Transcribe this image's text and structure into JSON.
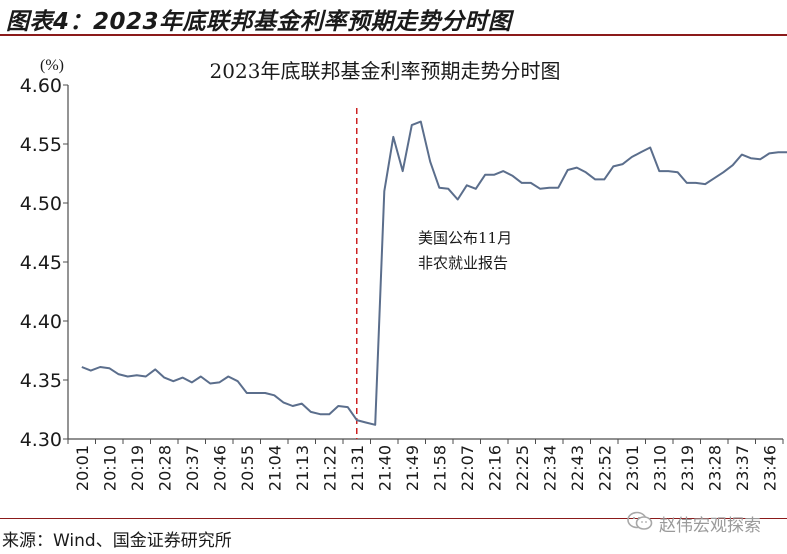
{
  "figure_title": "图表4：2023年底联邦基金利率预期走势分时图",
  "source_text": "来源：Wind、国金证券研究所",
  "watermark_text": "赵伟宏观探索",
  "chart_data": {
    "type": "line",
    "title": "2023年底联邦基金利率预期走势分时图",
    "ylabel": "(%)",
    "ylim": [
      4.3,
      4.6
    ],
    "y_ticks": [
      "4.60",
      "4.55",
      "4.50",
      "4.45",
      "4.40",
      "4.35",
      "4.30"
    ],
    "x_tick_labels": [
      "20:01",
      "20:10",
      "20:19",
      "20:28",
      "20:37",
      "20:46",
      "20:55",
      "21:04",
      "21:13",
      "21:22",
      "21:31",
      "21:40",
      "21:49",
      "21:58",
      "22:07",
      "22:16",
      "22:25",
      "22:34",
      "22:43",
      "22:52",
      "23:01",
      "23:10",
      "23:19",
      "23:28",
      "23:37",
      "23:46"
    ],
    "grid": false,
    "line_color": "#5b6e8c",
    "event_line_color": "#cc2222",
    "event_x_index": 10,
    "annotation_lines": [
      "美国公布11月",
      "非农就业报告"
    ],
    "series": [
      {
        "x": [
          0,
          0.33,
          0.67,
          1,
          1.33,
          1.67,
          2,
          2.33,
          2.67,
          3,
          3.33,
          3.67,
          4,
          4.33,
          4.67,
          5,
          5.33,
          5.67,
          6,
          6.33,
          6.67,
          7,
          7.33,
          7.67,
          8,
          8.33,
          8.67,
          9,
          9.33,
          9.67,
          10,
          10.33,
          10.67,
          11,
          11.33,
          11.67,
          12,
          12.33,
          12.67,
          13,
          13.33,
          13.67,
          14,
          14.33,
          14.67,
          15,
          15.33,
          15.67,
          16,
          16.33,
          16.67,
          17,
          17.33,
          17.67,
          18,
          18.33,
          18.67,
          19,
          19.33,
          19.67,
          20,
          20.33,
          20.67,
          21,
          21.33,
          21.67,
          22,
          22.33,
          22.67,
          23,
          23.33,
          23.67,
          24,
          24.33,
          24.67,
          25,
          25.33,
          25.67
        ],
        "values": [
          4.361,
          4.358,
          4.361,
          4.36,
          4.355,
          4.353,
          4.354,
          4.353,
          4.359,
          4.352,
          4.349,
          4.352,
          4.348,
          4.353,
          4.347,
          4.348,
          4.353,
          4.349,
          4.339,
          4.339,
          4.339,
          4.337,
          4.331,
          4.328,
          4.33,
          4.323,
          4.321,
          4.321,
          4.328,
          4.327,
          4.316,
          4.314,
          4.312,
          4.51,
          4.556,
          4.527,
          4.566,
          4.569,
          4.535,
          4.513,
          4.512,
          4.503,
          4.515,
          4.512,
          4.524,
          4.524,
          4.527,
          4.523,
          4.517,
          4.517,
          4.512,
          4.513,
          4.513,
          4.528,
          4.53,
          4.526,
          4.52,
          4.52,
          4.531,
          4.533,
          4.539,
          4.543,
          4.547,
          4.527,
          4.527,
          4.526,
          4.517,
          4.517,
          4.516,
          4.521,
          4.526,
          4.532,
          4.541,
          4.538,
          4.537,
          4.542,
          4.543,
          4.543
        ]
      }
    ]
  }
}
